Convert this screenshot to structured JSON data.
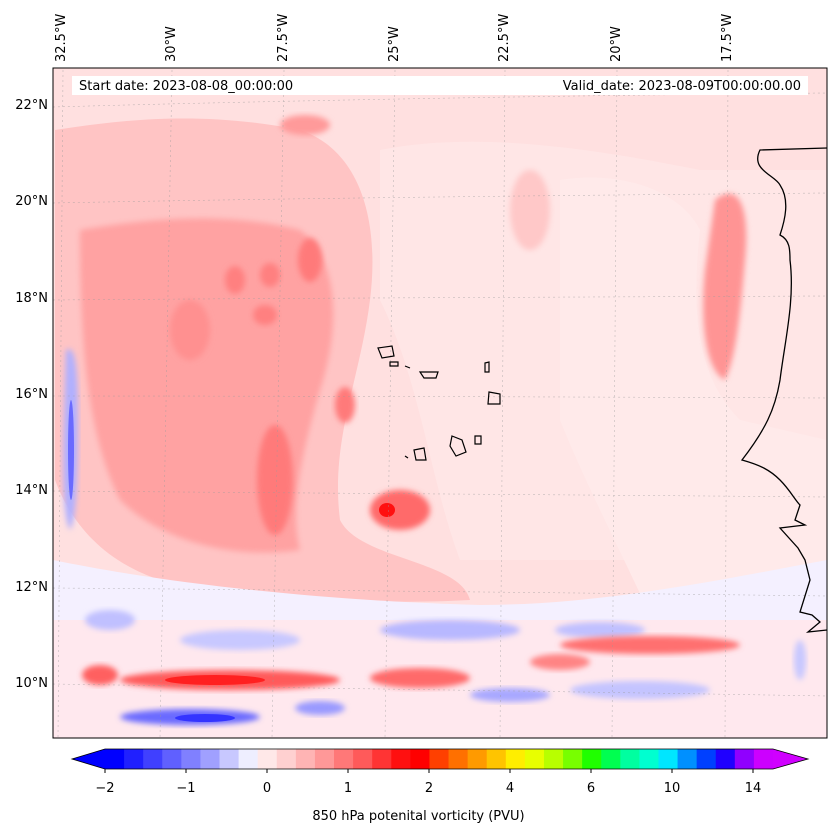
{
  "header": {
    "start": "Start date: 2023-08-08_00:00:00",
    "valid": "Valid_date: 2023-08-09T00:00:00.00"
  },
  "lon_labels": [
    "32.5°W",
    "30°W",
    "27.5°W",
    "25°W",
    "22.5°W",
    "20°W",
    "17.5°W"
  ],
  "lat_labels": [
    "22°N",
    "20°N",
    "18°N",
    "16°N",
    "14°N",
    "12°N",
    "10°N"
  ],
  "colorbar": {
    "label": "850 hPa potenital vorticity (PVU)",
    "ticks": [
      "−2",
      "−1",
      "0",
      "1",
      "2",
      "4",
      "6",
      "10",
      "14"
    ],
    "colors": [
      "#0000ff",
      "#2020ff",
      "#4040ff",
      "#6060ff",
      "#8080ff",
      "#a0a0ff",
      "#c8c8ff",
      "#eeeeff",
      "#ffe8e8",
      "#ffd0d0",
      "#ffb4b4",
      "#ff9898",
      "#ff7878",
      "#ff5a5a",
      "#ff3434",
      "#ff1010",
      "#ff0000",
      "#ff4000",
      "#ff7000",
      "#ff9a00",
      "#ffc400",
      "#ffee00",
      "#e8ff00",
      "#b8ff00",
      "#78ff00",
      "#20ff00",
      "#00ff50",
      "#00ffa0",
      "#00ffd0",
      "#00e6ff",
      "#0090ff",
      "#0040ff",
      "#2000ff",
      "#9000ff",
      "#cc00ff"
    ],
    "under_color": "#0000ff",
    "over_color": "#d000ff"
  },
  "palette": {
    "background_pink": "#ffdede",
    "light_pink": "#ffeaea",
    "mid_pink": "#ffbcbc",
    "red": "#ff8a8a",
    "deep_red": "#ff3030",
    "blue_light": "#dcdcff",
    "blue_mid": "#9a9aff",
    "blue_deep": "#4a4aff",
    "coast": "#000000"
  }
}
